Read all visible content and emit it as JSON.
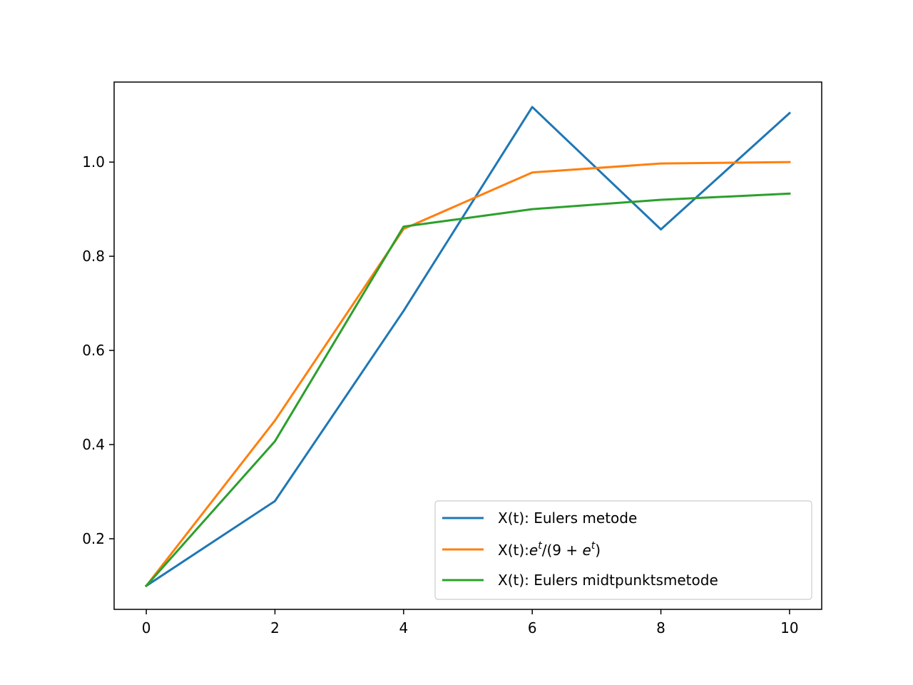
{
  "chart_data": {
    "type": "line",
    "title": "",
    "xlabel": "",
    "ylabel": "",
    "xlim": [
      -0.5,
      10.5
    ],
    "ylim": [
      0.05,
      1.17
    ],
    "xticks": [
      0,
      2,
      4,
      6,
      8,
      10
    ],
    "xtick_labels": [
      "0",
      "2",
      "4",
      "6",
      "8",
      "10"
    ],
    "yticks": [
      0.2,
      0.4,
      0.6,
      0.8,
      1.0
    ],
    "ytick_labels": [
      "0.2",
      "0.4",
      "0.6",
      "0.8",
      "1.0"
    ],
    "grid": false,
    "legend_position": "lower-right",
    "x": [
      0,
      2,
      4,
      6,
      8,
      10
    ],
    "series": [
      {
        "name": "X(t): Eulers metode",
        "color": "#1f77b4",
        "values": [
          0.1,
          0.28,
          0.684,
          1.117,
          0.857,
          1.104
        ]
      },
      {
        "name": "X(t):e^t/(9+e^t)",
        "name_parts": {
          "prefix": "X(t):",
          "e": "e",
          "sup": "t",
          "mid": "/(9 + ",
          "e2": "e",
          "sup2": "t",
          "suffix": ")"
        },
        "color": "#ff7f0e",
        "values": [
          0.1,
          0.451,
          0.858,
          0.978,
          0.997,
          1.0
        ]
      },
      {
        "name": "X(t): Eulers midtpunktsmetode",
        "color": "#2ca02c",
        "values": [
          0.1,
          0.407,
          0.863,
          0.9,
          0.92,
          0.933
        ]
      }
    ]
  }
}
